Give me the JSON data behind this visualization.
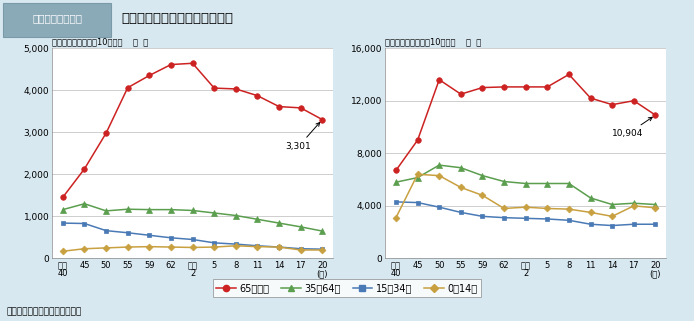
{
  "fig_number": "図１－２－３－６",
  "fig_title": "年齢階級別にみた受療率の推移",
  "subtitle_left": "（各年齢階級別人口10万対）    入  院",
  "subtitle_right": "（各年齢階級別人口10万対）    外  来",
  "source": "資料：厚生労働省「患者調査」",
  "x_labels": [
    "昭和\n40",
    "45",
    "50",
    "55",
    "59",
    "62",
    "平成\n2",
    "5",
    "8",
    "11",
    "14",
    "17",
    "20\n(年)"
  ],
  "x_positions": [
    0,
    1,
    2,
    3,
    4,
    5,
    6,
    7,
    8,
    9,
    10,
    11,
    12
  ],
  "inpatient": {
    "65plus": [
      1455,
      2130,
      2980,
      4060,
      4350,
      4610,
      4640,
      4050,
      4030,
      3870,
      3610,
      3580,
      3301
    ],
    "35to64": [
      1160,
      1300,
      1130,
      1170,
      1160,
      1160,
      1140,
      1080,
      1020,
      930,
      840,
      750,
      650
    ],
    "15to34": [
      840,
      830,
      660,
      610,
      550,
      490,
      450,
      370,
      340,
      300,
      270,
      230,
      220
    ],
    "0to14": [
      170,
      230,
      250,
      270,
      280,
      270,
      260,
      270,
      300,
      280,
      270,
      200,
      200
    ]
  },
  "outpatient": {
    "65plus": [
      6700,
      9000,
      13600,
      12500,
      13000,
      13050,
      13050,
      13050,
      14000,
      12200,
      11700,
      12000,
      10904
    ],
    "35to64": [
      5800,
      6150,
      7100,
      6900,
      6300,
      5850,
      5700,
      5700,
      5700,
      4600,
      4100,
      4200,
      4100
    ],
    "15to34": [
      4300,
      4250,
      3900,
      3500,
      3200,
      3100,
      3050,
      3000,
      2900,
      2600,
      2500,
      2600,
      2600
    ],
    "0to14": [
      3100,
      6400,
      6300,
      5400,
      4800,
      3800,
      3900,
      3800,
      3750,
      3500,
      3200,
      4000,
      3850
    ]
  },
  "colors": {
    "65plus": "#cc2222",
    "35to64": "#5a9e4e",
    "15to34": "#4a7ab5",
    "0to14": "#c8a040"
  },
  "legend_labels": {
    "65plus": "65歳以上",
    "35to64": "35～64歳",
    "15to34": "15～34歳",
    "0to14": "0～14歳"
  },
  "bg_color": "#d8e8f0",
  "plot_bg": "#ffffff",
  "title_box_color": "#8baab8",
  "grid_color": "#bbbbbb",
  "annotation_inpatient": "3,301",
  "annotation_outpatient": "10,904"
}
